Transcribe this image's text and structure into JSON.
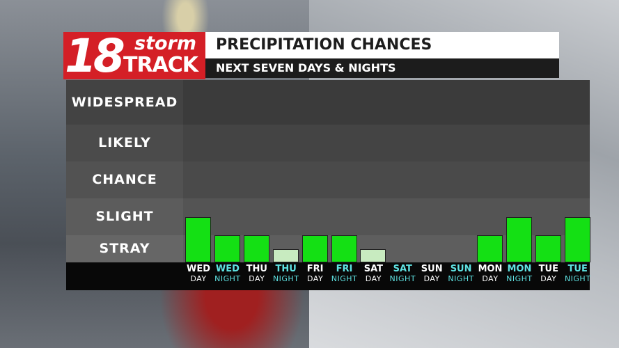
{
  "header": {
    "logo_number": "18",
    "logo_word_top": "storm",
    "logo_word_bottom": "TRACK",
    "title": "PRECIPITATION CHANCES",
    "subtitle": "NEXT SEVEN DAYS & NIGHTS"
  },
  "colors": {
    "day_label": "#ffffff",
    "night_label": "#5fe3e3",
    "bar_high": "#14e014",
    "bar_low": "#c8ebc0",
    "logo_red": "#d41f26"
  },
  "chart_data": {
    "type": "bar",
    "levels": [
      "STRAY",
      "SLIGHT",
      "CHANCE",
      "LIKELY",
      "WIDESPREAD"
    ],
    "level_scale": {
      "STRAY": 1,
      "SLIGHT": 2,
      "CHANCE": 3,
      "LIKELY": 4,
      "WIDESPREAD": 5
    },
    "ylim": [
      0,
      5
    ],
    "categories": [
      {
        "day": "WED",
        "period": "DAY"
      },
      {
        "day": "WED",
        "period": "NIGHT"
      },
      {
        "day": "THU",
        "period": "DAY"
      },
      {
        "day": "THU",
        "period": "NIGHT"
      },
      {
        "day": "FRI",
        "period": "DAY"
      },
      {
        "day": "FRI",
        "period": "NIGHT"
      },
      {
        "day": "SAT",
        "period": "DAY"
      },
      {
        "day": "SAT",
        "period": "NIGHT"
      },
      {
        "day": "SUN",
        "period": "DAY"
      },
      {
        "day": "SUN",
        "period": "NIGHT"
      },
      {
        "day": "MON",
        "period": "DAY"
      },
      {
        "day": "MON",
        "period": "NIGHT"
      },
      {
        "day": "TUE",
        "period": "DAY"
      },
      {
        "day": "TUE",
        "period": "NIGHT"
      }
    ],
    "values": [
      1.5,
      1.0,
      1.0,
      0.5,
      1.0,
      1.0,
      0.5,
      0,
      0,
      0,
      1.0,
      1.5,
      1.0,
      1.5
    ],
    "grid": false,
    "legend": "none"
  }
}
